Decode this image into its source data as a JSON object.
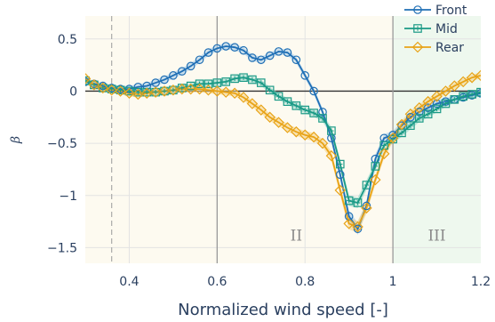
{
  "chart_data": {
    "type": "line",
    "title": "",
    "xlabel": "Normalized wind speed [-]",
    "ylabel": "β",
    "xlim": [
      0.3,
      1.2
    ],
    "ylim": [
      -1.65,
      0.72
    ],
    "xticks": [
      0.4,
      0.6,
      0.8,
      1,
      1.2
    ],
    "xtick_labels": [
      "0.4",
      "0.6",
      "0.8",
      "1",
      "1.2"
    ],
    "yticks": [
      0.5,
      0,
      -0.5,
      -1,
      -1.5
    ],
    "ytick_labels": [
      "0.5",
      "0",
      "−0.5",
      "−1",
      "−1.5"
    ],
    "grid": true,
    "legend_position": "top-right",
    "dashed_vline_x": 0.36,
    "regions": [
      {
        "label": "II",
        "x_start": 0.3,
        "x_end": 1.0,
        "color": "#fdfaf0",
        "label_x": 0.78,
        "label_y": -1.38
      },
      {
        "label": "III",
        "x_start": 1.0,
        "x_end": 1.2,
        "color": "#eef8ee",
        "label_x": 1.1,
        "label_y": -1.38
      }
    ],
    "region_boundaries": [
      0.6,
      1.0
    ],
    "series": [
      {
        "name": "Front",
        "color": "#1f6fb5",
        "band": "#9dc6ea",
        "marker": "circle",
        "x": [
          0.3,
          0.32,
          0.34,
          0.36,
          0.38,
          0.4,
          0.42,
          0.44,
          0.46,
          0.48,
          0.5,
          0.52,
          0.54,
          0.56,
          0.58,
          0.6,
          0.62,
          0.64,
          0.66,
          0.68,
          0.7,
          0.72,
          0.74,
          0.76,
          0.78,
          0.8,
          0.82,
          0.84,
          0.86,
          0.88,
          0.9,
          0.92,
          0.94,
          0.96,
          0.98,
          1.0,
          1.02,
          1.04,
          1.06,
          1.08,
          1.1,
          1.12,
          1.14,
          1.16,
          1.18,
          1.2
        ],
        "y": [
          0.09,
          0.07,
          0.05,
          0.03,
          0.02,
          0.02,
          0.04,
          0.05,
          0.08,
          0.11,
          0.15,
          0.19,
          0.24,
          0.3,
          0.37,
          0.41,
          0.43,
          0.42,
          0.39,
          0.32,
          0.3,
          0.34,
          0.38,
          0.37,
          0.3,
          0.15,
          0.0,
          -0.2,
          -0.45,
          -0.8,
          -1.2,
          -1.32,
          -1.1,
          -0.65,
          -0.45,
          -0.42,
          -0.33,
          -0.25,
          -0.2,
          -0.16,
          -0.12,
          -0.1,
          -0.08,
          -0.06,
          -0.04,
          -0.02
        ]
      },
      {
        "name": "Mid",
        "color": "#1a9a86",
        "band": "#8fd6c8",
        "marker": "square",
        "x": [
          0.3,
          0.32,
          0.34,
          0.36,
          0.38,
          0.4,
          0.42,
          0.44,
          0.46,
          0.48,
          0.5,
          0.52,
          0.54,
          0.56,
          0.58,
          0.6,
          0.62,
          0.64,
          0.66,
          0.68,
          0.7,
          0.72,
          0.74,
          0.76,
          0.78,
          0.8,
          0.82,
          0.84,
          0.86,
          0.88,
          0.9,
          0.92,
          0.94,
          0.96,
          0.98,
          1.0,
          1.02,
          1.04,
          1.06,
          1.08,
          1.1,
          1.12,
          1.14,
          1.16,
          1.18,
          1.2
        ],
        "y": [
          0.1,
          0.06,
          0.03,
          0.02,
          0.01,
          0.0,
          -0.01,
          -0.01,
          -0.01,
          0.0,
          0.01,
          0.03,
          0.05,
          0.07,
          0.07,
          0.08,
          0.09,
          0.12,
          0.13,
          0.11,
          0.08,
          0.01,
          -0.05,
          -0.1,
          -0.14,
          -0.18,
          -0.21,
          -0.26,
          -0.38,
          -0.7,
          -1.05,
          -1.07,
          -0.9,
          -0.72,
          -0.52,
          -0.46,
          -0.4,
          -0.33,
          -0.26,
          -0.22,
          -0.17,
          -0.12,
          -0.08,
          -0.05,
          -0.03,
          -0.01
        ]
      },
      {
        "name": "Rear",
        "color": "#e8a317",
        "band": "#f6cf7e",
        "marker": "diamond",
        "x": [
          0.3,
          0.32,
          0.34,
          0.36,
          0.38,
          0.4,
          0.42,
          0.44,
          0.46,
          0.48,
          0.5,
          0.52,
          0.54,
          0.56,
          0.58,
          0.6,
          0.62,
          0.64,
          0.66,
          0.68,
          0.7,
          0.72,
          0.74,
          0.76,
          0.78,
          0.8,
          0.82,
          0.84,
          0.86,
          0.88,
          0.9,
          0.92,
          0.94,
          0.96,
          0.98,
          1.0,
          1.02,
          1.04,
          1.06,
          1.08,
          1.1,
          1.12,
          1.14,
          1.16,
          1.18,
          1.2
        ],
        "y": [
          0.12,
          0.06,
          0.03,
          0.01,
          0.0,
          -0.02,
          -0.03,
          -0.02,
          -0.01,
          0.0,
          0.01,
          0.02,
          0.02,
          0.02,
          0.01,
          0.0,
          -0.01,
          -0.02,
          -0.06,
          -0.12,
          -0.18,
          -0.25,
          -0.3,
          -0.35,
          -0.39,
          -0.42,
          -0.44,
          -0.5,
          -0.62,
          -0.95,
          -1.27,
          -1.3,
          -1.12,
          -0.85,
          -0.6,
          -0.45,
          -0.32,
          -0.22,
          -0.16,
          -0.1,
          -0.05,
          0.0,
          0.05,
          0.09,
          0.13,
          0.15
        ]
      }
    ]
  }
}
